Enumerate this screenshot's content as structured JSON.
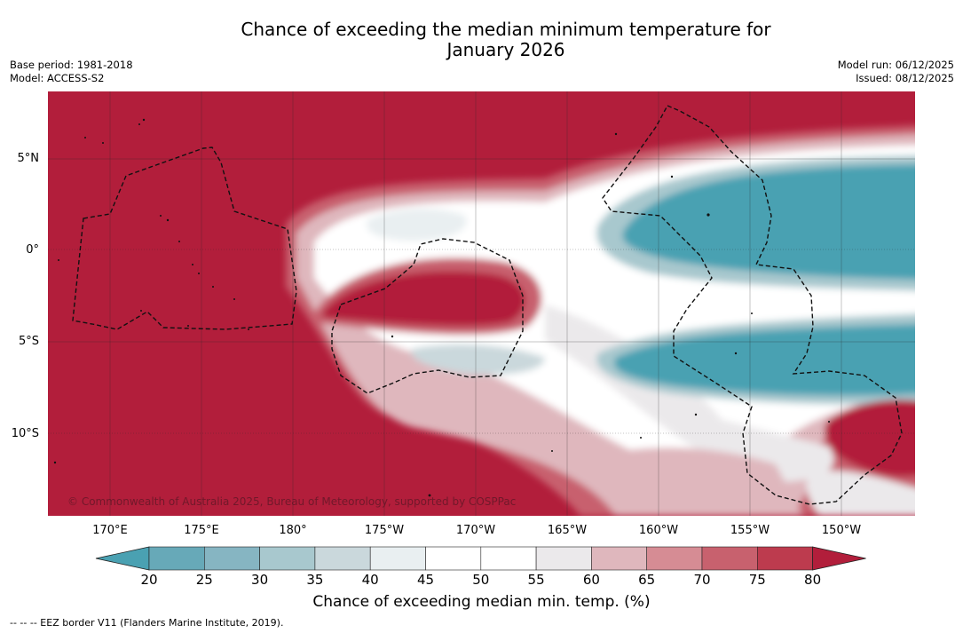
{
  "title_line1": "Chance of exceeding the median minimum temperature for",
  "title_line2": "January 2026",
  "base_period": "Base period: 1981-2018",
  "model": "Model: ACCESS-S2",
  "model_run": "Model run: 06/12/2025",
  "issued": "Issued: 08/12/2025",
  "lat_labels": [
    "5°N",
    "0°",
    "5°S",
    "10°S"
  ],
  "lon_labels": [
    "170°E",
    "175°E",
    "180°",
    "175°W",
    "170°W",
    "165°W",
    "160°W",
    "155°W",
    "150°W"
  ],
  "copyright": "© Commonwealth of Australia 2025, Bureau of Meteorology, supported by COSPPac",
  "colorbar": {
    "ticks": [
      "20",
      "25",
      "30",
      "35",
      "40",
      "45",
      "50",
      "55",
      "60",
      "65",
      "70",
      "75",
      "80"
    ],
    "colors": [
      "#67a9b8",
      "#86b5c2",
      "#a8c8ce",
      "#cad8dc",
      "#e9eff1",
      "#ffffff",
      "#ffffff",
      "#ebe9eb",
      "#dfb7bd",
      "#d68c94",
      "#c8616e",
      "#bd3b4e"
    ],
    "low_extend_color": "#4aa1b2",
    "high_extend_color": "#b21e3b",
    "label": "Chance of exceeding median min. temp. (%)"
  },
  "footer": "-- -- -- EEZ border V11 (Flanders Marine Institute, 2019)."
}
